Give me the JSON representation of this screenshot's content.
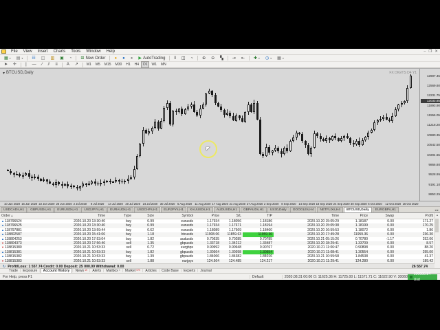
{
  "icons": {
    "dropdown": "▾",
    "minimize": "–",
    "restore": "❐",
    "close": "✕",
    "sort_asc": "▵",
    "buy_arrow": "▲",
    "sell_arrow": "▼",
    "summary": "↻",
    "tab_arrows": "◂ ▸",
    "scroll_up": "▲",
    "scroll_down": "▼",
    "cursor": "◤"
  },
  "app": {
    "menu_items": [
      "File",
      "View",
      "Insert",
      "Charts",
      "Tools",
      "Window",
      "Help"
    ]
  },
  "toolbar": {
    "row1": [
      {
        "name": "new-chart-button",
        "glyph": "▦",
        "color": "#2e7d32",
        "dropdown": true
      },
      {
        "name": "profiles-button",
        "glyph": "▤",
        "color": "#6d6d6d",
        "dropdown": true
      },
      {
        "sep": true
      },
      {
        "name": "market-watch-button",
        "glyph": "☷",
        "color": "#1565c0"
      },
      {
        "name": "data-window-button",
        "glyph": "◫",
        "color": "#6d6d6d"
      },
      {
        "name": "navigator-button",
        "glyph": "▥",
        "color": "#b8860b"
      },
      {
        "name": "terminal-button",
        "glyph": "▣",
        "color": "#2e7d32"
      },
      {
        "name": "strategy-tester-button",
        "glyph": "◔",
        "color": "#6d6d6d"
      },
      {
        "sep": true
      },
      {
        "name": "new-order-button",
        "glyph": "⊞",
        "color": "#2e7d32",
        "label": "New Order"
      },
      {
        "sep": true
      },
      {
        "name": "metaeditor-button",
        "glyph": "●",
        "color": "#e6a817"
      },
      {
        "name": "expert-advisors-button",
        "glyph": "●",
        "color": "#1565c0"
      },
      {
        "name": "script-button",
        "glyph": "●",
        "color": "#8a8a8a"
      },
      {
        "name": "autotrading-button",
        "glyph": "▶",
        "color": "#2ea03a",
        "label": "AutoTrading"
      },
      {
        "sep": true
      },
      {
        "name": "bar-chart-button",
        "glyph": "‖",
        "color": "#333333"
      },
      {
        "name": "candlestick-chart-button",
        "glyph": "◫",
        "color": "#333333"
      },
      {
        "name": "line-chart-button",
        "glyph": "~",
        "color": "#333333"
      },
      {
        "sep": true
      },
      {
        "name": "zoom-in-button",
        "glyph": "⊕",
        "color": "#444444"
      },
      {
        "name": "zoom-out-button",
        "glyph": "⊖",
        "color": "#444444"
      },
      {
        "name": "tile-windows-button",
        "glyph": "▚",
        "color": "#444444"
      },
      {
        "sep": true
      },
      {
        "name": "auto-scroll-button",
        "glyph": "⇥",
        "color": "#444444"
      },
      {
        "name": "chart-shift-button",
        "glyph": "⇤",
        "color": "#444444"
      },
      {
        "sep": true
      },
      {
        "name": "indicators-button",
        "glyph": "✚",
        "color": "#2e7d32",
        "dropdown": true
      },
      {
        "name": "periods-button",
        "glyph": "◷",
        "color": "#1565c0",
        "dropdown": true
      },
      {
        "name": "templates-button",
        "glyph": "▦",
        "color": "#6d6d6d",
        "dropdown": true
      }
    ],
    "row2": [
      {
        "name": "cursor-tool-button",
        "glyph": "➤",
        "color": "#333333"
      },
      {
        "name": "crosshair-tool-button",
        "glyph": "✛",
        "color": "#333333"
      },
      {
        "sep": true
      },
      {
        "name": "vertical-line-button",
        "glyph": "|",
        "color": "#333333"
      },
      {
        "name": "horizontal-line-button",
        "glyph": "—",
        "color": "#333333"
      },
      {
        "name": "trendline-button",
        "glyph": "∕",
        "color": "#333333"
      },
      {
        "name": "channel-button",
        "glyph": "⫽",
        "color": "#333333"
      },
      {
        "name": "fibonacci-button",
        "glyph": "≡",
        "color": "#333333"
      },
      {
        "sep": true
      },
      {
        "name": "text-tool-button",
        "glyph": "A",
        "color": "#333333"
      },
      {
        "name": "arrows-tool-button",
        "glyph": "↗",
        "color": "#333333"
      },
      {
        "sep": true
      }
    ],
    "timeframes": [
      {
        "label": "M1"
      },
      {
        "label": "M5"
      },
      {
        "label": "M15"
      },
      {
        "label": "M30"
      },
      {
        "label": "H1"
      },
      {
        "label": "H4"
      },
      {
        "label": "D1",
        "active": true
      },
      {
        "label": "W1"
      },
      {
        "label": "MN"
      }
    ]
  },
  "chart": {
    "symbol_label": "BTCUSD,Daily",
    "watermark": "FX DIGITS D4 Y1"
  },
  "chart_data": {
    "type": "candlestick",
    "symbol": "BTCUSD",
    "timeframe": "Daily",
    "title": "BTCUSD,Daily",
    "ylim": [
      8680,
      13050
    ],
    "grid": false,
    "price_axis_labels": [
      "12907.45",
      "12569.60",
      "12231.75",
      "11893.90",
      "11556.05",
      "11218.20",
      "10880.35",
      "10542.50",
      "10204.65",
      "9866.80",
      "9528.95",
      "9191.10",
      "8853.25"
    ],
    "current_price": "12033.85",
    "current_price_value": 12033.85,
    "x_labels": [
      "10 Jun 2020",
      "16 Jun 2020",
      "22 Jun 2020",
      "26 Jun 2020",
      "2 Jul 2020",
      "8 Jul 2020",
      "14 Jul 2020",
      "20 Jul 2020",
      "24 Jul 2020",
      "30 Jul 2020",
      "5 Aug 2020",
      "11 Aug 2020",
      "17 Aug 2020",
      "21 Aug 2020",
      "27 Aug 2020",
      "2 Sep 2020",
      "8 Sep 2020",
      "14 Sep 2020",
      "18 Sep 2020",
      "24 Sep 2020",
      "30 Sep 2020",
      "6 Oct 2020",
      "12 Oct 2020",
      "16 Oct 2020"
    ],
    "open_first": 9700,
    "closes": [
      9650,
      9580,
      9520,
      9560,
      9480,
      9510,
      9580,
      9460,
      9410,
      9450,
      9380,
      9320,
      9360,
      9290,
      9230,
      9180,
      9260,
      9200,
      9140,
      9190,
      9120,
      9160,
      9100,
      9060,
      9130,
      9210,
      9170,
      9230,
      9280,
      9230,
      9190,
      9250,
      9290,
      9320,
      9260,
      9290,
      9340,
      9290,
      9260,
      9310,
      9390,
      9440,
      9720,
      10170,
      10580,
      11060,
      10930,
      11010,
      11120,
      11330,
      11100,
      11360,
      11810,
      11960,
      11230,
      11710,
      11660,
      11770,
      11590,
      11760,
      11860,
      11930,
      11670,
      11550,
      11790,
      11930,
      12290,
      12390,
      12240,
      11970,
      11850,
      11730,
      11570,
      11650,
      11520,
      11370,
      11550,
      11460,
      11340,
      11660,
      11930,
      11670,
      11980,
      11400,
      10230,
      10160,
      10460,
      10270,
      10340,
      10450,
      10320,
      10220,
      10450,
      10320,
      10680,
      10790,
      10960,
      10910,
      10670,
      10530,
      10220,
      10450,
      10930,
      10830,
      10740,
      10680,
      10760,
      10710,
      10850,
      10770,
      10680,
      10760,
      10850,
      10770,
      10610,
      10560,
      10680,
      10540,
      10700,
      10810,
      10960,
      11060,
      11300,
      11380,
      11430,
      11510,
      11410,
      11360,
      11520,
      11750,
      11920,
      11960,
      12040,
      12490,
      12910
    ]
  },
  "chart_tabs": {
    "tabs": [
      {
        "label": "USDCADs,H1"
      },
      {
        "label": "GBPUSDs,H1"
      },
      {
        "label": "EURUSDs,H1"
      },
      {
        "label": "USDJPYs,H1"
      },
      {
        "label": "EURAUDs,H1"
      },
      {
        "label": "USDCHFs,H1"
      },
      {
        "label": "EURJPYs,H1"
      },
      {
        "label": "XAUUSDs,H1"
      },
      {
        "label": "AUDUSDs,H1"
      },
      {
        "label": "GBPAUDs,H1"
      },
      {
        "label": "US30,Daily"
      },
      {
        "label": "GOOGLEs,H4"
      },
      {
        "label": "NETFLIXs,H4"
      },
      {
        "label": "BTCUSD,Daily",
        "active": true
      },
      {
        "label": "EURGBPs,H1"
      }
    ]
  },
  "history": {
    "columns": [
      "Order",
      "Time",
      "Type",
      "Size",
      "Symbol",
      "Price",
      "S/L",
      "T/P",
      "Time",
      "Price",
      "Swap",
      "Profit"
    ],
    "rows": [
      [
        "118796524",
        "2020.10.20 13:30:40",
        "buy",
        "0.99",
        "eurusds",
        "1.17934",
        "1.18056",
        "1.18186",
        "2020.10.20 15:05:29",
        "1.18187",
        "0.00",
        "171.27"
      ],
      [
        "118796525",
        "2020.10.20 13:30:40",
        "buy",
        "0.99",
        "eurusds",
        "1.17934",
        "1.17671",
        "1.18194",
        "2020.10.20 15:05:38",
        "1.18199",
        "0.00",
        "170.25"
      ],
      [
        "118797881",
        "2020.10.20 13:59:44",
        "buy",
        "0.62",
        "eurusds",
        "1.18089",
        "1.17669",
        "1.18460",
        "2020.10.20 16:59:53",
        "1.18072",
        "0.00",
        "1.86"
      ],
      [
        "118802587",
        "2020.10.20 15:41:06",
        "buy",
        "1.18",
        "btcusds",
        "11908.06",
        "11859.63",
        "11959.36",
        "2020.10.20 17:49:28",
        "11959.36",
        "0.00",
        "236.30"
      ],
      [
        "118804253",
        "2020.10.20 17:53:04",
        "buy",
        "1.82",
        "audusds",
        "0.70535",
        "0.70285",
        "0.70785",
        "2020.10.21 05:15:26",
        "0.70780",
        "-1.17",
        "252.06"
      ],
      [
        "118804373",
        "2020.10.20 17:56:46",
        "sell",
        "1.35",
        "gbpusds",
        "1.33718",
        "1.34212",
        "1.33487",
        "2020.10.20 18:29:41",
        "1.33709",
        "0.00",
        "8.57"
      ],
      [
        "118815380",
        "2020.10.21 10:53:33",
        "sell",
        "0.72",
        "eurgbps",
        "0.90992",
        "0.90948",
        "0.90767",
        "2020.10.21 11:06:47",
        "0.90898",
        "0.00",
        "88.20"
      ],
      [
        "118815381",
        "2020.10.21 10:53:33",
        "buy",
        "1.82",
        "gbpusds",
        "1.30364",
        "1.30398",
        "1.30554",
        "2020.10.21 11:08:41",
        "1.30554",
        "0.00",
        "255.00"
      ],
      [
        "118815382",
        "2020.10.21 10:53:33",
        "buy",
        "1.39",
        "gbpauds",
        "1.84066",
        "1.84382",
        "1.84016",
        "2020.10.21 10:59:58",
        "1.84538",
        "0.00",
        "41.37"
      ],
      [
        "118815383",
        "2020.10.21 10:53:33",
        "sell",
        "1.88",
        "eurjpys",
        "124.564",
        "124.485",
        "124.217",
        "2020.10.21 11:29:41",
        "124.280",
        "0.00",
        "189.42"
      ]
    ],
    "tp_hit_rows": [
      3,
      7
    ],
    "summary": {
      "text": "Profit/Loss: 1 557.74   Credit: 0.00   Deposit: 25 000.00   Withdrawal: 0.00",
      "total": "26 557.74"
    }
  },
  "terminal_tabs": [
    {
      "label": "Trade"
    },
    {
      "label": "Exposure"
    },
    {
      "label": "Account History",
      "active": true
    },
    {
      "label": "News",
      "badge": "19",
      "badge_color": "#c62828"
    },
    {
      "label": "Alerts"
    },
    {
      "label": "Mailbox",
      "badge": "9",
      "badge_color": "#777777"
    },
    {
      "label": "Market",
      "badge": "979",
      "badge_color": "#c62828"
    },
    {
      "label": "Articles"
    },
    {
      "label": "Code Base"
    },
    {
      "label": "Experts"
    },
    {
      "label": "Journal"
    }
  ],
  "status_bar": {
    "help_text": "For Help, press F1",
    "profile": "Default",
    "ohlc": "2020.08.31 00:00   O: 11625.36   H: 11725.00   L: 11571.71   C: 11622.90   V: 30060",
    "balance_badge": "100000.84 Usd"
  }
}
